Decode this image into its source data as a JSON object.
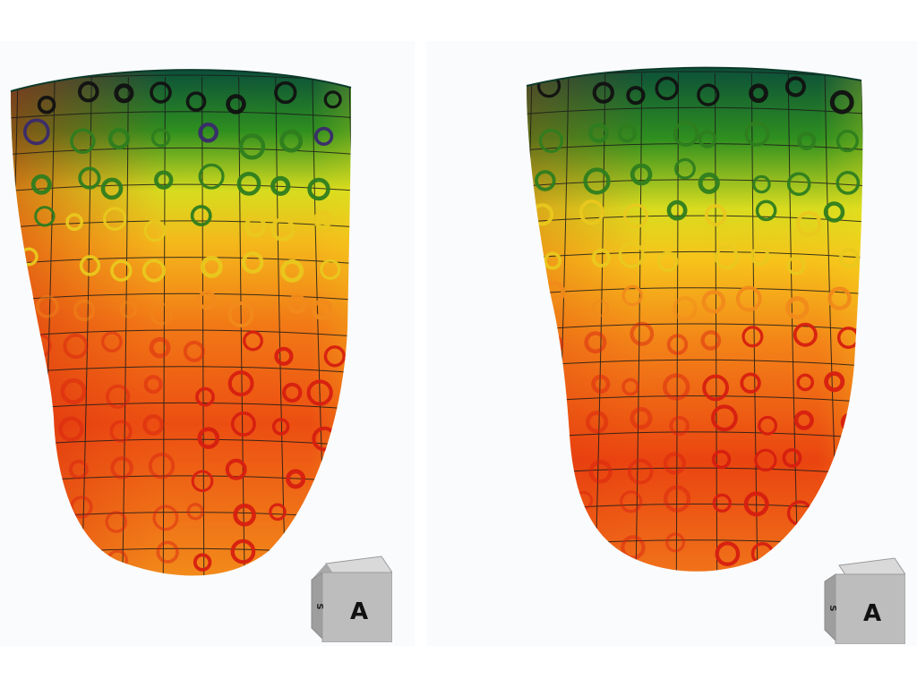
{
  "views": [
    {
      "id": "left",
      "orientation_cube": {
        "front_label": "A",
        "side_label": "S"
      }
    },
    {
      "id": "right",
      "orientation_cube": {
        "front_label": "A",
        "side_label": "S"
      }
    }
  ],
  "colors": {
    "surface_gradient": [
      "#0d5a3a",
      "#2e8f1f",
      "#c9d622",
      "#f1e21a",
      "#f6a218",
      "#ee5a14",
      "#e5200e"
    ],
    "marker_ring_dark": "#111111",
    "marker_ring_purple": "#3a2a6e",
    "marker_ring_green": "#2e7d1f",
    "marker_ring_yellow": "#e9c81d",
    "marker_ring_orange": "#f08a1a",
    "marker_ring_red": "#d61f10",
    "cube_face": "#b9b9b9",
    "background": "#fafbfd"
  }
}
